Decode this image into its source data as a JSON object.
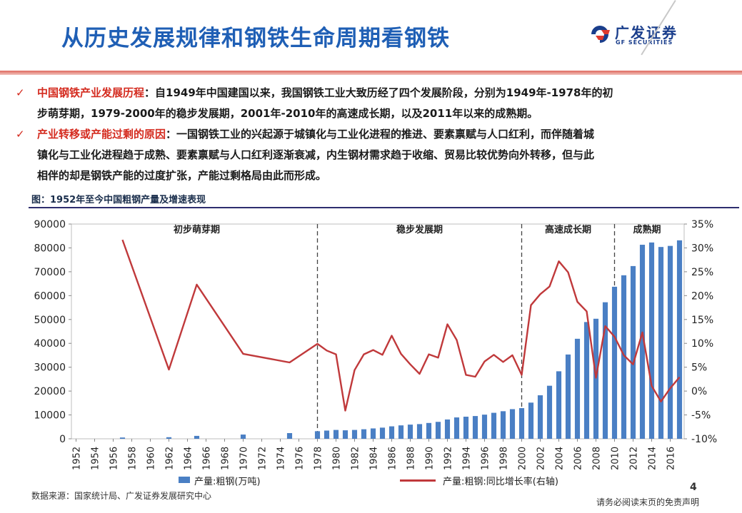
{
  "header": {
    "title": "从历史发展规律和钢铁生命周期看钢铁",
    "logo_cn": "广发证券",
    "logo_en": "GF SECURITIES"
  },
  "bullets": [
    {
      "label": "中国钢铁产业发展历程",
      "line1": "：自1949年中国建国以来，我国钢铁工业大致历经了四个发展阶段，分别为1949年-1978年的初",
      "line2": "步萌芽期，1979-2000年的稳步发展期，2001年-2010年的高速成长期，以及2011年以来的成熟期。"
    },
    {
      "label": "产业转移或产能过剩的原因",
      "line1": "：一国钢铁工业的兴起源于城镇化与工业化进程的推进、要素禀赋与人口红利，而伴随着城",
      "line2": "镇化与工业化进程趋于成熟、要素禀赋与人口红利逐渐衰减，内生钢材需求趋于收缩、贸易比较优势向外转移，但与此",
      "line3": "相伴的却是钢铁产能的过度扩张，产能过剩格局由此而形成。"
    }
  ],
  "figure_caption": "图：1952年至今中国粗钢产量及增速表现",
  "footer": {
    "source": "数据来源：国家统计局、广发证券发展研究中心",
    "disclaimer": "请务必阅读末页的免责声明",
    "page": "4"
  },
  "colors": {
    "title": "#1f5fb5",
    "accent_red": "#d42a1e",
    "bar": "#4a7fc4",
    "line": "#c0393b"
  },
  "chart_data": {
    "type": "bar",
    "xlabel": "",
    "ylabel": "",
    "ylim": [
      0,
      90000
    ],
    "y_ticks": [
      0,
      10000,
      20000,
      30000,
      40000,
      50000,
      60000,
      70000,
      80000,
      90000
    ],
    "y2lim": [
      -10,
      35
    ],
    "y2_ticks": [
      "-10%",
      "-5%",
      "0%",
      "5%",
      "10%",
      "15%",
      "20%",
      "25%",
      "30%",
      "35%"
    ],
    "x_tick_labels": [
      "1952",
      "1954",
      "1956",
      "1958",
      "1960",
      "1962",
      "1964",
      "1966",
      "1968",
      "1970",
      "1972",
      "1974",
      "1976",
      "1978",
      "1980",
      "1982",
      "1984",
      "1986",
      "1988",
      "1990",
      "1992",
      "1994",
      "1996",
      "1998",
      "2000",
      "2002",
      "2004",
      "2006",
      "2008",
      "2010",
      "2012",
      "2014",
      "2016"
    ],
    "phases": [
      {
        "label": "初步萌芽期",
        "start": 1952,
        "end": 1978
      },
      {
        "label": "稳步发展期",
        "start": 1978,
        "end": 2000
      },
      {
        "label": "高速成长期",
        "start": 2000,
        "end": 2010
      },
      {
        "label": "成熟期",
        "start": 2010,
        "end": 2017
      }
    ],
    "phase_dividers": [
      1978,
      2000,
      2010
    ],
    "series": [
      {
        "name": "产量:粗钢(万吨)",
        "type": "bar",
        "axis": "left",
        "points": [
          [
            1957,
            535
          ],
          [
            1962,
            667
          ],
          [
            1965,
            1223
          ],
          [
            1970,
            1779
          ],
          [
            1975,
            2390
          ],
          [
            1978,
            3178
          ],
          [
            1979,
            3448
          ],
          [
            1980,
            3712
          ],
          [
            1981,
            3560
          ],
          [
            1982,
            3716
          ],
          [
            1983,
            4002
          ],
          [
            1984,
            4347
          ],
          [
            1985,
            4679
          ],
          [
            1986,
            5220
          ],
          [
            1987,
            5628
          ],
          [
            1988,
            5943
          ],
          [
            1989,
            6159
          ],
          [
            1990,
            6635
          ],
          [
            1991,
            7100
          ],
          [
            1992,
            8094
          ],
          [
            1993,
            8956
          ],
          [
            1994,
            9261
          ],
          [
            1995,
            9536
          ],
          [
            1996,
            10124
          ],
          [
            1997,
            10894
          ],
          [
            1998,
            11559
          ],
          [
            1999,
            12426
          ],
          [
            2000,
            12850
          ],
          [
            2001,
            15163
          ],
          [
            2002,
            18237
          ],
          [
            2003,
            22234
          ],
          [
            2004,
            28291
          ],
          [
            2005,
            35324
          ],
          [
            2006,
            41915
          ],
          [
            2007,
            48929
          ],
          [
            2008,
            50305
          ],
          [
            2009,
            57218
          ],
          [
            2010,
            63723
          ],
          [
            2011,
            68528
          ],
          [
            2012,
            72388
          ],
          [
            2013,
            81314
          ],
          [
            2014,
            82270
          ],
          [
            2015,
            80383
          ],
          [
            2016,
            80837
          ],
          [
            2017,
            83173
          ]
        ]
      },
      {
        "name": "产量:粗钢:同比增长率(右轴)",
        "type": "line",
        "axis": "right",
        "points": [
          [
            1957,
            31.7
          ],
          [
            1962,
            4.5
          ],
          [
            1965,
            22.3
          ],
          [
            1970,
            7.8
          ],
          [
            1975,
            6.0
          ],
          [
            1978,
            9.9
          ],
          [
            1979,
            8.5
          ],
          [
            1980,
            7.7
          ],
          [
            1981,
            -4.1
          ],
          [
            1982,
            4.4
          ],
          [
            1983,
            7.7
          ],
          [
            1984,
            8.6
          ],
          [
            1985,
            7.6
          ],
          [
            1986,
            11.6
          ],
          [
            1987,
            7.8
          ],
          [
            1988,
            5.6
          ],
          [
            1989,
            3.6
          ],
          [
            1990,
            7.7
          ],
          [
            1991,
            7.0
          ],
          [
            1992,
            14.0
          ],
          [
            1993,
            10.7
          ],
          [
            1994,
            3.4
          ],
          [
            1995,
            3.0
          ],
          [
            1996,
            6.2
          ],
          [
            1997,
            7.6
          ],
          [
            1998,
            6.1
          ],
          [
            1999,
            7.5
          ],
          [
            2000,
            3.4
          ],
          [
            2001,
            18.0
          ],
          [
            2002,
            20.3
          ],
          [
            2003,
            21.9
          ],
          [
            2004,
            27.2
          ],
          [
            2005,
            24.9
          ],
          [
            2006,
            18.7
          ],
          [
            2007,
            16.7
          ],
          [
            2008,
            2.8
          ],
          [
            2009,
            13.6
          ],
          [
            2010,
            11.4
          ],
          [
            2011,
            7.5
          ],
          [
            2012,
            5.6
          ],
          [
            2013,
            12.3
          ],
          [
            2014,
            1.1
          ],
          [
            2015,
            -2.2
          ],
          [
            2016,
            0.6
          ],
          [
            2017,
            2.9
          ]
        ]
      }
    ]
  }
}
